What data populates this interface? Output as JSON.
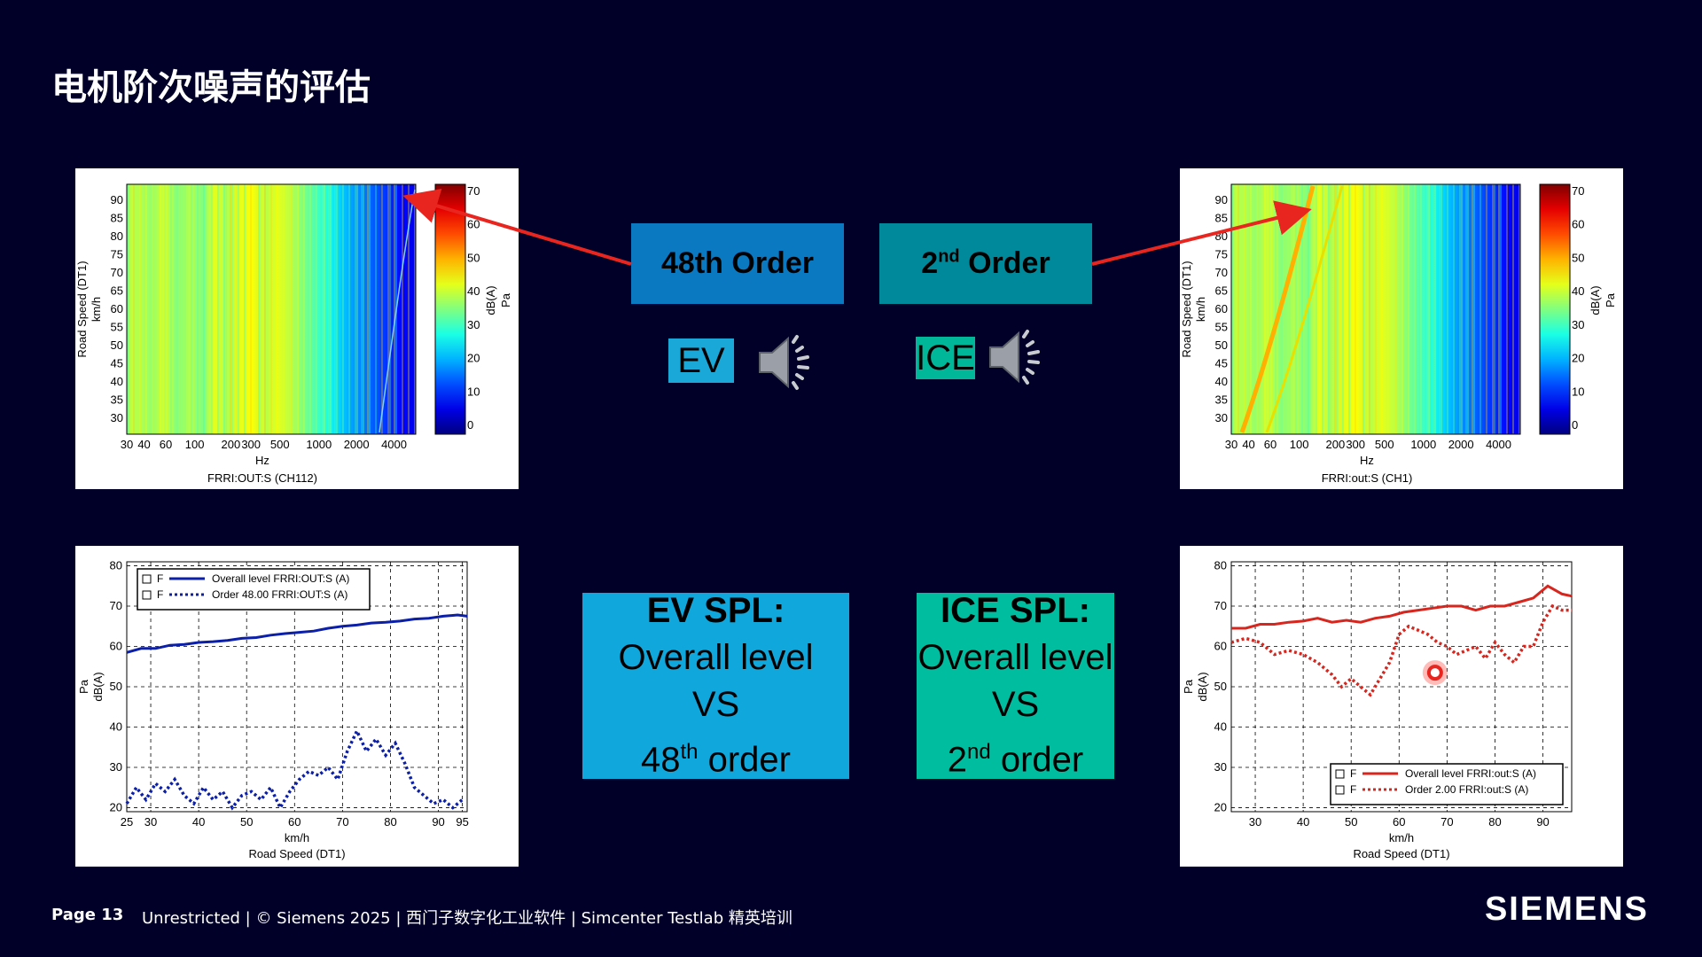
{
  "slide": {
    "title": "电机阶次噪声的评估",
    "page_label": "Page 13",
    "footer_text": "Unrestricted | © Siemens 2025 | 西门子数字化工业软件 | Simcenter Testlab 精英培训",
    "logo": "SIEMENS"
  },
  "labels": {
    "order_48": "48th Order",
    "order_2_num": "2",
    "order_2_sup": "nd",
    "order_2_word": " Order",
    "ev": "EV",
    "ice": "ICE",
    "ev_spl": {
      "head": "EV SPL:",
      "line1": "Overall level",
      "line2": "VS",
      "line3_num": "48",
      "line3_sup": "th",
      "line3_word": " order"
    },
    "ice_spl": {
      "head": "ICE SPL:",
      "line1": "Overall level",
      "line2": "VS",
      "line3_num": "2",
      "line3_sup": "nd",
      "line3_word": " order"
    }
  },
  "colors": {
    "background": "#000028",
    "order48_box": "#0a79c2",
    "order2_box": "#00899a",
    "ev_tag": "#1aa8d8",
    "ice_tag": "#00b79a",
    "ev_spl_box": "#10a7dc",
    "ice_spl_box": "#00bd9f",
    "arrow": "#e8251f"
  },
  "icons": {
    "speaker": "speaker-icon"
  },
  "chart_data": [
    {
      "type": "heatmap",
      "id": "ev_colormap",
      "ylabel": "Road Speed (DT1)",
      "yunit": "km/h",
      "xlabel": "Hz",
      "caption": "FRRI:OUT:S (CH112)",
      "xticks": [
        "30",
        "40",
        "60",
        "100",
        "200",
        "300",
        "500",
        "1000",
        "2000",
        "4000"
      ],
      "yticks": [
        "90",
        "85",
        "80",
        "75",
        "70",
        "65",
        "60",
        "55",
        "50",
        "45",
        "40",
        "35",
        "30"
      ],
      "colorbar_label": "dB(A)",
      "colorbar_unit": "Pa",
      "colorbar_ticks": [
        "70",
        "60",
        "50",
        "40",
        "30",
        "20",
        "10",
        "0"
      ],
      "zrange": [
        0,
        70
      ]
    },
    {
      "type": "heatmap",
      "id": "ice_colormap",
      "ylabel": "Road Speed (DT1)",
      "yunit": "km/h",
      "xlabel": "Hz",
      "caption": "FRRI:out:S (CH1)",
      "xticks": [
        "30",
        "40",
        "60",
        "100",
        "200",
        "300",
        "500",
        "1000",
        "2000",
        "4000"
      ],
      "yticks": [
        "90",
        "85",
        "80",
        "75",
        "70",
        "65",
        "60",
        "55",
        "50",
        "45",
        "40",
        "35",
        "30"
      ],
      "colorbar_label": "dB(A)",
      "colorbar_unit": "Pa",
      "colorbar_ticks": [
        "70",
        "60",
        "50",
        "40",
        "30",
        "20",
        "10",
        "0"
      ],
      "zrange": [
        0,
        70
      ]
    },
    {
      "type": "line",
      "id": "ev_spl_chart",
      "xlabel_unit": "km/h",
      "xlabel": "Road Speed (DT1)",
      "ylabel_unit": "Pa",
      "ylabel": "dB(A)",
      "xlim": [
        25,
        96
      ],
      "ylim": [
        19,
        81
      ],
      "xticks": [
        25,
        30,
        40,
        50,
        60,
        70,
        80,
        90,
        95
      ],
      "yticks": [
        20,
        30,
        40,
        50,
        60,
        70,
        80
      ],
      "grid": true,
      "legend_position": "top-left",
      "color": "#0b1fa8",
      "series": [
        {
          "name": "Overall level FRRI:OUT:S (A)",
          "legend_prefix": "F",
          "style": "solid",
          "x": [
            25,
            28,
            31,
            34,
            37,
            40,
            43,
            46,
            49,
            52,
            55,
            58,
            61,
            64,
            67,
            70,
            73,
            76,
            79,
            82,
            85,
            88,
            91,
            94,
            96
          ],
          "y": [
            58.5,
            59.5,
            59.5,
            60.3,
            60.5,
            61.0,
            61.2,
            61.5,
            62.0,
            62.2,
            62.8,
            63.2,
            63.5,
            63.8,
            64.5,
            65.0,
            65.3,
            65.8,
            66.0,
            66.3,
            66.8,
            67.0,
            67.5,
            67.8,
            67.5
          ]
        },
        {
          "name": "Order 48.00 FRRI:OUT:S (A)",
          "legend_prefix": "F",
          "style": "dotted",
          "x": [
            25,
            27,
            29,
            31,
            33,
            35,
            37,
            39,
            41,
            43,
            45,
            47,
            49,
            51,
            53,
            55,
            57,
            59,
            61,
            63,
            65,
            67,
            69,
            71,
            73,
            75,
            77,
            79,
            81,
            83,
            85,
            87,
            89,
            91,
            93,
            95
          ],
          "y": [
            21,
            25,
            22,
            26,
            24,
            27,
            23,
            21,
            25,
            22,
            24,
            20,
            23,
            24,
            22,
            25,
            20,
            24,
            27,
            29,
            28,
            30,
            27,
            34,
            39,
            34,
            37,
            33,
            36,
            31,
            25,
            23,
            21,
            22,
            20,
            22
          ]
        }
      ]
    },
    {
      "type": "line",
      "id": "ice_spl_chart",
      "xlabel_unit": "km/h",
      "xlabel": "Road Speed (DT1)",
      "ylabel_unit": "Pa",
      "ylabel": "dB(A)",
      "xlim": [
        25,
        96
      ],
      "ylim": [
        19,
        81
      ],
      "xticks": [
        30,
        40,
        50,
        60,
        70,
        80,
        90
      ],
      "yticks": [
        20,
        30,
        40,
        50,
        60,
        70,
        80
      ],
      "grid": true,
      "legend_position": "bottom-right",
      "color": "#d7261e",
      "series": [
        {
          "name": "Overall level FRRI:out:S (A)",
          "legend_prefix": "F",
          "style": "solid",
          "x": [
            25,
            28,
            31,
            34,
            37,
            40,
            43,
            46,
            49,
            52,
            55,
            58,
            61,
            64,
            67,
            70,
            73,
            76,
            79,
            82,
            85,
            88,
            91,
            94,
            96
          ],
          "y": [
            64.5,
            64.5,
            65.5,
            65.5,
            66.0,
            66.3,
            67.0,
            66.0,
            66.5,
            66.0,
            67.0,
            67.5,
            68.5,
            69.0,
            69.5,
            70.0,
            70.0,
            69.0,
            70.0,
            70.0,
            71.0,
            72.0,
            75.0,
            73.0,
            72.5
          ]
        },
        {
          "name": "Order 2.00 FRRI:out:S (A)",
          "legend_prefix": "F",
          "style": "dotted",
          "x": [
            25,
            28,
            31,
            34,
            37,
            40,
            43,
            46,
            48,
            50,
            52,
            54,
            56,
            58,
            60,
            62,
            64,
            66,
            68,
            70,
            72,
            74,
            76,
            78,
            80,
            82,
            84,
            86,
            88,
            90,
            92,
            94,
            96
          ],
          "y": [
            61,
            62,
            61,
            58,
            59,
            58,
            56,
            53,
            50,
            52,
            50,
            48,
            52,
            56,
            63,
            65,
            64,
            63,
            61,
            60,
            58,
            59,
            60,
            57,
            61,
            58,
            56,
            60,
            60,
            66,
            70,
            69,
            69
          ]
        }
      ],
      "marker": {
        "x": 67.5,
        "y": 53.5
      }
    }
  ]
}
